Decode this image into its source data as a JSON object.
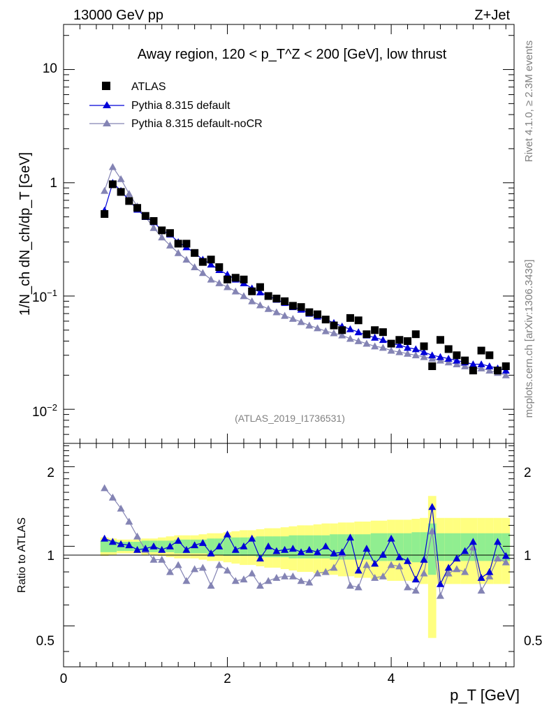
{
  "header": {
    "left": "13000 GeV pp",
    "right": "Z+Jet"
  },
  "side": {
    "rivet": "Rivet 4.1.0, ≥ 2.3M events",
    "mcplots": "mcplots.cern.ch [arXiv:1306.3436]"
  },
  "chart_data": {
    "type": "scatter",
    "title": "Away region, 120 < p_T^Z < 200 [GeV], low thrust",
    "analysis_label": "(ATLAS_2019_I1736531)",
    "xlabel": "p_T [GeV]",
    "ylabel": "1/N_ch dN_ch/dp_T [GeV]",
    "ratio_ylabel": "Ratio to ATLAS",
    "xlim": [
      0,
      5.5
    ],
    "ylim_log": [
      0.005,
      25
    ],
    "ratio_ylim": [
      0.35,
      2.45
    ],
    "x_ticks": [
      "0",
      "2",
      "4"
    ],
    "y_ticks": [
      "10^-2",
      "10^-1",
      "1",
      "10"
    ],
    "ratio_ticks": [
      "0.5",
      "1",
      "2"
    ],
    "legend": [
      "ATLAS",
      "Pythia 8.315 default",
      "Pythia 8.315 default-noCR"
    ],
    "colors": {
      "atlas": "#000000",
      "default": "#0000d8",
      "nocr": "#8484b4",
      "band_inner": "#90ee90",
      "band_outer": "#ffff80"
    },
    "x": [
      0.5,
      0.6,
      0.7,
      0.8,
      0.9,
      1.0,
      1.1,
      1.2,
      1.3,
      1.4,
      1.5,
      1.6,
      1.7,
      1.8,
      1.9,
      2.0,
      2.1,
      2.2,
      2.3,
      2.4,
      2.5,
      2.6,
      2.7,
      2.8,
      2.9,
      3.0,
      3.1,
      3.2,
      3.3,
      3.4,
      3.5,
      3.6,
      3.7,
      3.8,
      3.9,
      4.0,
      4.1,
      4.2,
      4.3,
      4.4,
      4.5,
      4.6,
      4.7,
      4.8,
      4.9,
      5.0,
      5.1,
      5.2,
      5.3,
      5.4
    ],
    "atlas": [
      0.53,
      0.97,
      0.83,
      0.69,
      0.6,
      0.51,
      0.46,
      0.38,
      0.36,
      0.29,
      0.29,
      0.24,
      0.2,
      0.21,
      0.18,
      0.14,
      0.145,
      0.14,
      0.11,
      0.12,
      0.1,
      0.095,
      0.09,
      0.082,
      0.08,
      0.072,
      0.069,
      0.062,
      0.055,
      0.05,
      0.064,
      0.061,
      0.046,
      0.05,
      0.048,
      0.038,
      0.041,
      0.04,
      0.046,
      0.036,
      0.024,
      0.041,
      0.034,
      0.03,
      0.027,
      0.022,
      0.033,
      0.03,
      0.022,
      0.024
    ],
    "series": [
      {
        "name": "Pythia 8.315 default",
        "values": [
          0.57,
          1.0,
          0.85,
          0.7,
          0.58,
          0.5,
          0.45,
          0.38,
          0.35,
          0.3,
          0.27,
          0.24,
          0.21,
          0.19,
          0.17,
          0.155,
          0.14,
          0.13,
          0.117,
          0.108,
          0.1,
          0.093,
          0.087,
          0.08,
          0.076,
          0.07,
          0.066,
          0.062,
          0.058,
          0.054,
          0.051,
          0.048,
          0.045,
          0.043,
          0.041,
          0.038,
          0.037,
          0.035,
          0.034,
          0.032,
          0.03,
          0.029,
          0.028,
          0.027,
          0.026,
          0.025,
          0.025,
          0.024,
          0.023,
          0.022
        ],
        "ratio": [
          1.07,
          1.04,
          1.02,
          1.01,
          0.97,
          0.98,
          1.0,
          0.97,
          1.0,
          1.05,
          0.97,
          1.01,
          1.03,
          0.94,
          1.0,
          1.11,
          0.97,
          1.0,
          1.07,
          0.9,
          1.0,
          0.96,
          0.97,
          0.98,
          0.95,
          0.97,
          0.95,
          1.0,
          0.94,
          0.95,
          1.08,
          0.81,
          0.98,
          0.86,
          0.93,
          1.07,
          0.91,
          0.88,
          0.75,
          0.89,
          1.41,
          0.72,
          0.83,
          0.9,
          0.96,
          1.04,
          0.76,
          0.8,
          1.04,
          0.92
        ]
      },
      {
        "name": "Pythia 8.315 default-noCR",
        "values": [
          0.85,
          1.38,
          1.08,
          0.8,
          0.62,
          0.5,
          0.4,
          0.33,
          0.28,
          0.24,
          0.21,
          0.18,
          0.16,
          0.14,
          0.13,
          0.12,
          0.11,
          0.1,
          0.09,
          0.083,
          0.077,
          0.072,
          0.067,
          0.063,
          0.059,
          0.055,
          0.052,
          0.049,
          0.047,
          0.045,
          0.042,
          0.04,
          0.038,
          0.036,
          0.035,
          0.033,
          0.032,
          0.031,
          0.03,
          0.029,
          0.028,
          0.027,
          0.026,
          0.025,
          0.024,
          0.023,
          0.023,
          0.022,
          0.021,
          0.02
        ],
        "ratio": [
          1.66,
          1.53,
          1.39,
          1.24,
          1.09,
          0.97,
          0.89,
          0.89,
          0.8,
          0.85,
          0.74,
          0.82,
          0.83,
          0.71,
          0.85,
          0.81,
          0.74,
          0.75,
          0.79,
          0.71,
          0.74,
          0.76,
          0.77,
          0.77,
          0.74,
          0.73,
          0.79,
          0.8,
          0.83,
          0.94,
          0.71,
          0.7,
          0.85,
          0.76,
          0.77,
          0.85,
          0.84,
          0.7,
          0.68,
          0.79,
          1.14,
          0.65,
          0.79,
          0.82,
          0.8,
          0.99,
          0.68,
          0.77,
          0.9,
          0.87
        ]
      }
    ],
    "band_inner": [
      0.05,
      0.05,
      0.04,
      0.04,
      0.04,
      0.05,
      0.05,
      0.05,
      0.05,
      0.06,
      0.06,
      0.06,
      0.06,
      0.07,
      0.07,
      0.08,
      0.08,
      0.08,
      0.08,
      0.09,
      0.09,
      0.09,
      0.09,
      0.1,
      0.1,
      0.1,
      0.1,
      0.1,
      0.11,
      0.11,
      0.11,
      0.11,
      0.11,
      0.12,
      0.12,
      0.12,
      0.12,
      0.12,
      0.13,
      0.13,
      0.22,
      0.12,
      0.12,
      0.12,
      0.12,
      0.12,
      0.12,
      0.12,
      0.12,
      0.12
    ],
    "band_outer": [
      0.08,
      0.07,
      0.06,
      0.06,
      0.06,
      0.07,
      0.07,
      0.08,
      0.09,
      0.1,
      0.1,
      0.1,
      0.11,
      0.12,
      0.12,
      0.13,
      0.14,
      0.15,
      0.15,
      0.16,
      0.17,
      0.17,
      0.18,
      0.19,
      0.2,
      0.2,
      0.21,
      0.22,
      0.22,
      0.23,
      0.23,
      0.24,
      0.24,
      0.25,
      0.25,
      0.26,
      0.26,
      0.26,
      0.27,
      0.28,
      0.55,
      0.28,
      0.28,
      0.28,
      0.28,
      0.28,
      0.28,
      0.28,
      0.28,
      0.28
    ]
  }
}
